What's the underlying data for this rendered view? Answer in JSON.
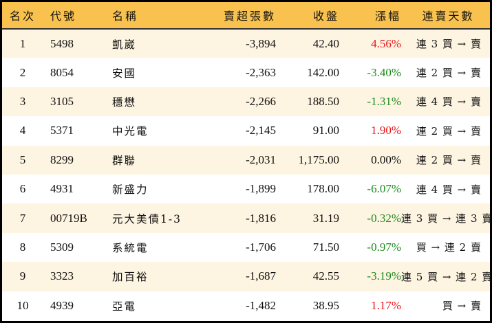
{
  "colors": {
    "header_bg": "#F9C24E",
    "row_alt_bg": "#FDF4E1",
    "row_bg": "#FFFFFF",
    "up": "#E8141B",
    "down": "#1E8A1E",
    "border": "#000000"
  },
  "table": {
    "headers": {
      "rank": "名次",
      "code": "代號",
      "name": "名稱",
      "sell_count": "賣超張數",
      "close": "收盤",
      "change": "漲幅",
      "streak": "連賣天數"
    },
    "rows": [
      {
        "rank": "1",
        "code": "5498",
        "name": "凱崴",
        "sell_count": "-3,894",
        "close": "42.40",
        "change": "4.56%",
        "trend": "up",
        "streak": "連 3 買 → 賣"
      },
      {
        "rank": "2",
        "code": "8054",
        "name": "安國",
        "sell_count": "-2,363",
        "close": "142.00",
        "change": "-3.40%",
        "trend": "down",
        "streak": "連 2 買 → 賣"
      },
      {
        "rank": "3",
        "code": "3105",
        "name": "穩懋",
        "sell_count": "-2,266",
        "close": "188.50",
        "change": "-1.31%",
        "trend": "down",
        "streak": "連 4 買 → 賣"
      },
      {
        "rank": "4",
        "code": "5371",
        "name": "中光電",
        "sell_count": "-2,145",
        "close": "91.00",
        "change": "1.90%",
        "trend": "up",
        "streak": "連 2 買 → 賣"
      },
      {
        "rank": "5",
        "code": "8299",
        "name": "群聯",
        "sell_count": "-2,031",
        "close": "1,175.00",
        "change": "0.00%",
        "trend": "flat",
        "streak": "連 2 買 → 賣"
      },
      {
        "rank": "6",
        "code": "4931",
        "name": "新盛力",
        "sell_count": "-1,899",
        "close": "178.00",
        "change": "-6.07%",
        "trend": "down",
        "streak": "連 4 買 → 賣"
      },
      {
        "rank": "7",
        "code": "00719B",
        "name": "元大美債1-3",
        "sell_count": "-1,816",
        "close": "31.19",
        "change": "-0.32%",
        "trend": "down",
        "streak": "連 3 買 → 連 3 賣"
      },
      {
        "rank": "8",
        "code": "5309",
        "name": "系統電",
        "sell_count": "-1,706",
        "close": "71.50",
        "change": "-0.97%",
        "trend": "down",
        "streak": "買 → 連 2 賣"
      },
      {
        "rank": "9",
        "code": "3323",
        "name": "加百裕",
        "sell_count": "-1,687",
        "close": "42.55",
        "change": "-3.19%",
        "trend": "down",
        "streak": "連 5 買 → 連 2 賣"
      },
      {
        "rank": "10",
        "code": "4939",
        "name": "亞電",
        "sell_count": "-1,482",
        "close": "38.95",
        "change": "1.17%",
        "trend": "up",
        "streak": "買 → 賣"
      }
    ]
  }
}
